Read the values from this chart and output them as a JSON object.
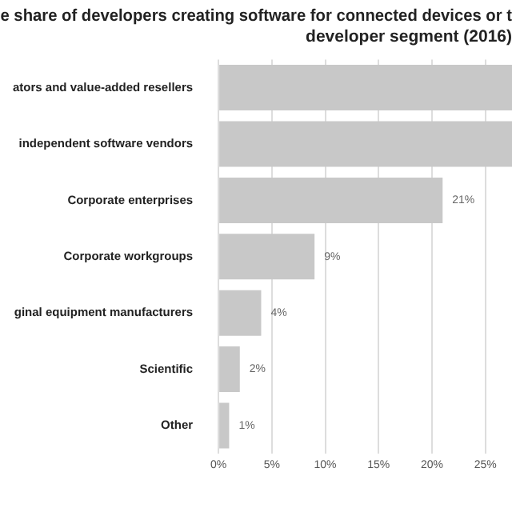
{
  "chart_data": {
    "type": "bar",
    "orientation": "horizontal",
    "title": "e share of developers creating software for connected devices or t\ndeveloper segment (2016)",
    "categories": [
      "ators and value-added resellers",
      "independent software vendors",
      "Corporate enterprises",
      "Corporate workgroups",
      "ginal equipment manufacturers",
      "Scientific",
      "Other"
    ],
    "values": [
      27.5,
      27.5,
      21,
      9,
      4,
      2,
      1
    ],
    "value_labels": [
      null,
      null,
      "21%",
      "9%",
      "4%",
      "2%",
      "1%"
    ],
    "color": "#c8c8c8",
    "xlim": [
      0,
      27.5
    ],
    "xticks": [
      {
        "value": 0,
        "label": "0%"
      },
      {
        "value": 5,
        "label": "5%"
      },
      {
        "value": 10,
        "label": "10%"
      },
      {
        "value": 15,
        "label": "15%"
      },
      {
        "value": 20,
        "label": "20%"
      },
      {
        "value": 25,
        "label": "25%"
      }
    ],
    "grid": "x",
    "legend": false
  }
}
